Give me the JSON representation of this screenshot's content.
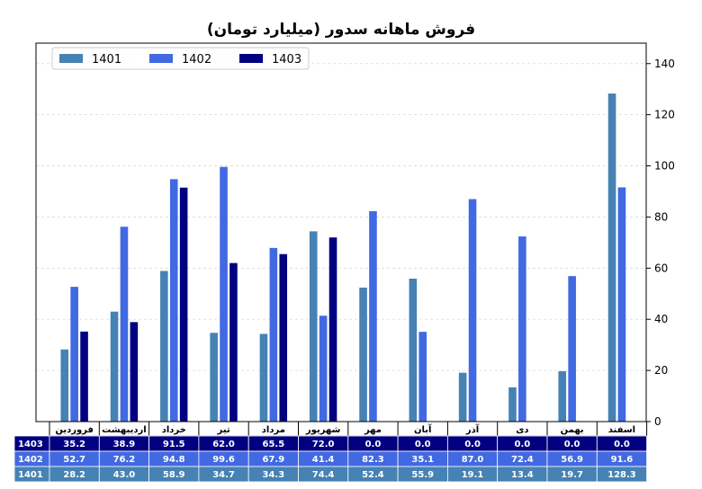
{
  "chart_data": {
    "type": "bar",
    "title": "فروش ماهانه سدور (میلیارد تومان)",
    "categories": [
      "فروردین",
      "اردیبهشت",
      "خرداد",
      "تیر",
      "مرداد",
      "شهریور",
      "مهر",
      "آبان",
      "آذر",
      "دی",
      "بهمن",
      "اسفند"
    ],
    "series": [
      {
        "name": "1401",
        "color": "#4682b4",
        "values": [
          28.2,
          43.0,
          58.9,
          34.7,
          34.3,
          74.4,
          52.4,
          55.9,
          19.1,
          13.4,
          19.7,
          128.3
        ]
      },
      {
        "name": "1402",
        "color": "#4169e1",
        "values": [
          52.7,
          76.2,
          94.8,
          99.6,
          67.9,
          41.4,
          82.3,
          35.1,
          87.0,
          72.4,
          56.9,
          91.6
        ]
      },
      {
        "name": "1403",
        "color": "#000080",
        "values": [
          35.2,
          38.9,
          91.5,
          62.0,
          65.5,
          72.0,
          0.0,
          0.0,
          0.0,
          0.0,
          0.0,
          0.0
        ]
      }
    ],
    "table_rows": [
      "1403",
      "1402",
      "1401"
    ],
    "ylim": [
      0,
      148
    ],
    "yticks": [
      0,
      20,
      40,
      60,
      80,
      100,
      120,
      140
    ],
    "y_axis_side": "right",
    "grid": true,
    "legend_position": "top-left"
  }
}
